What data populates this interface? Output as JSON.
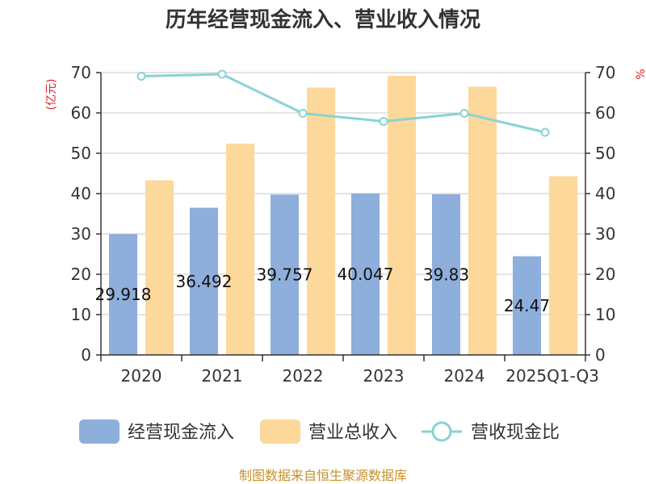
{
  "chart_data": {
    "type": "bar",
    "title": "历年经营现金流入、营业收入情况",
    "ylabel_left": "(亿元)",
    "ylabel_right": "%",
    "categories": [
      "2020",
      "2021",
      "2022",
      "2023",
      "2024",
      "2025Q1-Q3"
    ],
    "ylim_left": [
      0,
      70
    ],
    "ylim_right": [
      0,
      70
    ],
    "yticks_left": [
      "0",
      "10",
      "20",
      "30",
      "40",
      "50",
      "60",
      "70"
    ],
    "yticks_right": [
      "0",
      "10",
      "20",
      "30",
      "40",
      "50",
      "60",
      "70"
    ],
    "grid": true,
    "legend_position": "bottom",
    "series": [
      {
        "name": "经营现金流入",
        "type": "bar",
        "axis": "left",
        "color": "#8eaedb",
        "values": [
          29.918,
          36.492,
          39.757,
          40.047,
          39.83,
          24.47
        ],
        "labels": [
          "29.918",
          "36.492",
          "39.757",
          "40.047",
          "39.83",
          "24.47"
        ]
      },
      {
        "name": "营业总收入",
        "type": "bar",
        "axis": "left",
        "color": "#fdd89b",
        "values": [
          43.3,
          52.4,
          66.3,
          69.2,
          66.5,
          44.3
        ]
      },
      {
        "name": "营收现金比",
        "type": "line",
        "axis": "right",
        "color": "#88d3d6",
        "values": [
          69.1,
          69.6,
          59.9,
          57.9,
          59.9,
          55.2
        ]
      }
    ]
  },
  "footer": {
    "source": "制图数据来自恒生聚源数据库"
  }
}
